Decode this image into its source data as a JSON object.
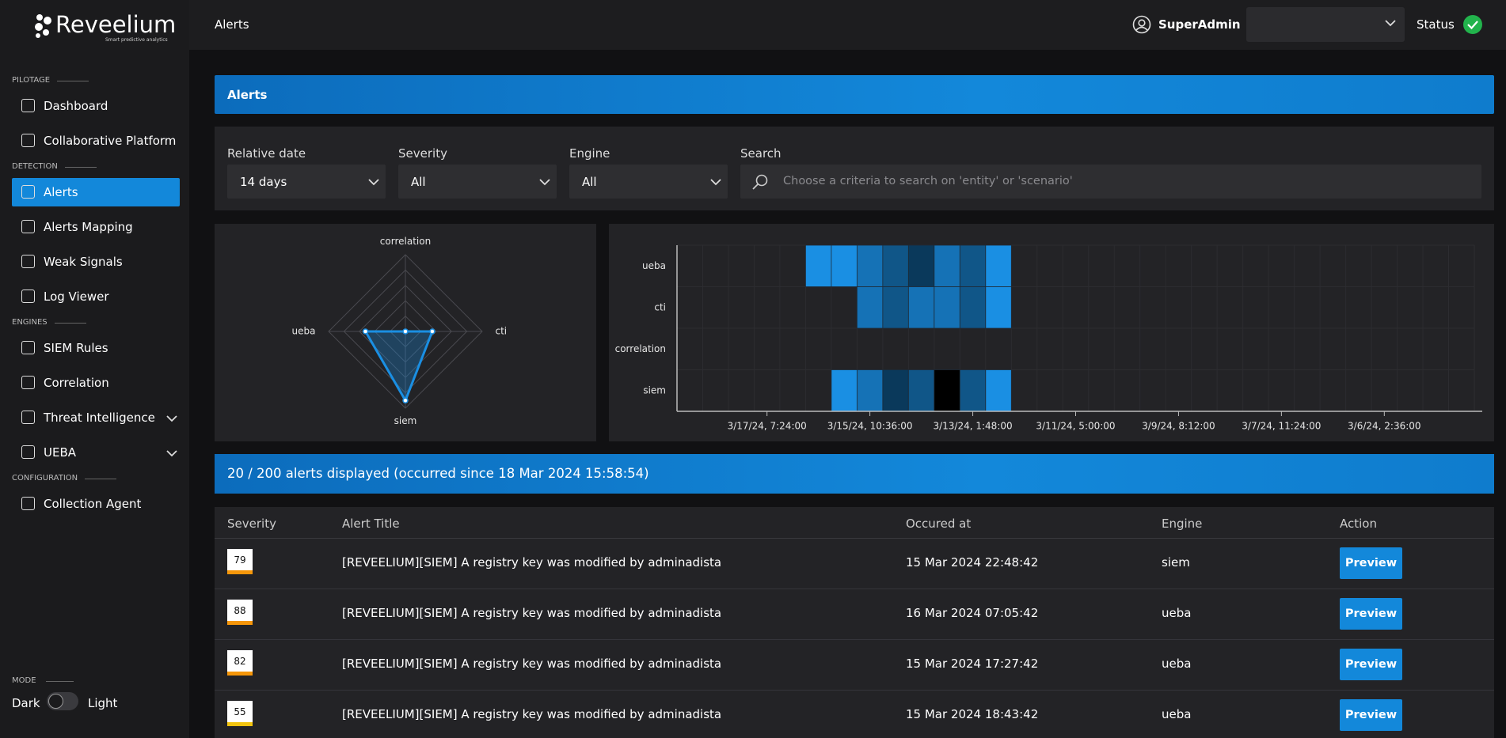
{
  "logo": {
    "name": "Reveelium",
    "tagline": "Smart predictive analytics"
  },
  "header": {
    "title": "Alerts",
    "user": "SuperAdmin",
    "status": "Status"
  },
  "sidebar": {
    "sections": [
      {
        "label": "PILOTAGE",
        "items": [
          {
            "label": "Dashboard"
          },
          {
            "label": "Collaborative Platform"
          }
        ]
      },
      {
        "label": "DETECTION",
        "items": [
          {
            "label": "Alerts",
            "active": true
          },
          {
            "label": "Alerts Mapping"
          },
          {
            "label": "Weak Signals"
          },
          {
            "label": "Log Viewer"
          }
        ]
      },
      {
        "label": "ENGINES",
        "items": [
          {
            "label": "SIEM Rules"
          },
          {
            "label": "Correlation"
          },
          {
            "label": "Threat Intelligence",
            "expandable": true
          },
          {
            "label": "UEBA",
            "expandable": true
          }
        ]
      },
      {
        "label": "CONFIGURATION",
        "items": [
          {
            "label": "Collection Agent"
          }
        ]
      }
    ]
  },
  "mode": {
    "label": "MODE",
    "dark": "Dark",
    "light": "Light"
  },
  "panel": {
    "title": "Alerts"
  },
  "filters": [
    {
      "label": "Relative date",
      "value": "14 days"
    },
    {
      "label": "Severity",
      "value": "All"
    },
    {
      "label": "Engine",
      "value": "All"
    }
  ],
  "search": {
    "label": "Search",
    "placeholder": "Choose a criteria to search on 'entity' or 'scenario'"
  },
  "summary": "20 / 200 alerts displayed (occurred since 18 Mar 2024 15:58:54)",
  "table": {
    "columns": [
      "Severity",
      "Alert Title",
      "Occured at",
      "Engine",
      "Action"
    ],
    "rows": [
      {
        "severity": 79,
        "badge_color": "#f5960a",
        "title": "[REVEELIUM][SIEM] A registry key was modified by adminadista",
        "occurred_at": "15 Mar 2024 22:48:42",
        "engine": "siem",
        "action": "Preview"
      },
      {
        "severity": 88,
        "badge_color": "#f5960a",
        "title": "[REVEELIUM][SIEM] A registry key was modified by adminadista",
        "occurred_at": "16 Mar 2024 07:05:42",
        "engine": "ueba",
        "action": "Preview"
      },
      {
        "severity": 82,
        "badge_color": "#f5960a",
        "title": "[REVEELIUM][SIEM] A registry key was modified by adminadista",
        "occurred_at": "15 Mar 2024 17:27:42",
        "engine": "ueba",
        "action": "Preview"
      },
      {
        "severity": 55,
        "badge_color": "#f2c40f",
        "title": "[REVEELIUM][SIEM] A registry key was modified by adminadista",
        "occurred_at": "15 Mar 2024 18:43:42",
        "engine": "ueba",
        "action": "Preview"
      }
    ]
  },
  "chart_data": [
    {
      "type": "radar",
      "categories": [
        "correlation",
        "cti",
        "siem",
        "ueba"
      ],
      "values": [
        0,
        1.75,
        4.5,
        2.6
      ],
      "rlim": [
        0,
        5
      ],
      "rticks": [
        1,
        2,
        3,
        4,
        5
      ],
      "color": "#1a8fe3"
    },
    {
      "type": "heatmap",
      "categories": [
        "ueba",
        "cti",
        "correlation",
        "siem"
      ],
      "xlim": [
        0,
        31
      ],
      "xticks": [
        {
          "value": 3.5,
          "label": "3/17/24, 7:24:00"
        },
        {
          "value": 7.5,
          "label": "3/15/24, 10:36:00"
        },
        {
          "value": 11.5,
          "label": "3/13/24, 1:48:00"
        },
        {
          "value": 15.5,
          "label": "3/11/24, 5:00:00"
        },
        {
          "value": 19.5,
          "label": "3/9/24, 8:12:00"
        },
        {
          "value": 23.5,
          "label": "3/7/24, 11:24:00"
        },
        {
          "value": 27.5,
          "label": "3/6/24, 2:36:00"
        }
      ],
      "values": [
        [
          null,
          null,
          null,
          null,
          null,
          1,
          1,
          2,
          3,
          4,
          2,
          3,
          1,
          null,
          null,
          null,
          null,
          null,
          null,
          null,
          null,
          null,
          null,
          null,
          null,
          null,
          null,
          null,
          null,
          null,
          null
        ],
        [
          null,
          null,
          null,
          null,
          null,
          null,
          null,
          2,
          3,
          2,
          2,
          3,
          1,
          null,
          null,
          null,
          null,
          null,
          null,
          null,
          null,
          null,
          null,
          null,
          null,
          null,
          null,
          null,
          null,
          null,
          null
        ],
        [
          null,
          null,
          null,
          null,
          null,
          null,
          null,
          null,
          null,
          null,
          null,
          null,
          null,
          null,
          null,
          null,
          null,
          null,
          null,
          null,
          null,
          null,
          null,
          null,
          null,
          null,
          null,
          null,
          null,
          null,
          null
        ],
        [
          null,
          null,
          null,
          null,
          null,
          null,
          1,
          2,
          4,
          3,
          6,
          3,
          1,
          null,
          null,
          null,
          null,
          null,
          null,
          null,
          null,
          null,
          null,
          null,
          null,
          null,
          null,
          null,
          null,
          null,
          null
        ]
      ],
      "zlim": [
        1,
        6
      ],
      "colors": [
        "#1a8fe3",
        "#000000"
      ]
    }
  ]
}
